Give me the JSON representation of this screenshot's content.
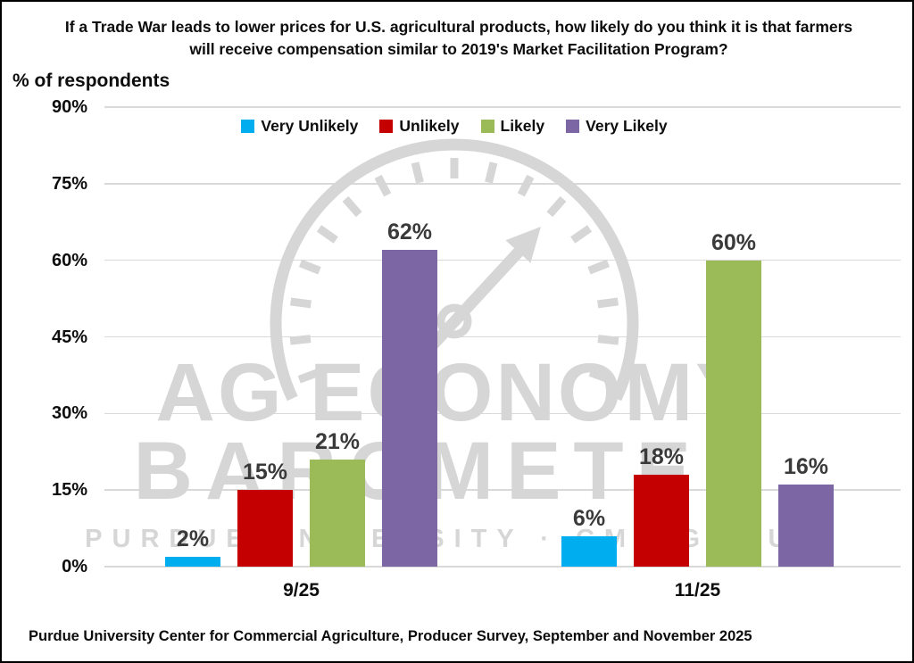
{
  "title": "If a Trade War leads to lower prices for U.S. agricultural products, how likely do you think it is that farmers will receive compensation similar to 2019's Market Facilitation Program?",
  "y_axis_label": "% of respondents",
  "footer": "Purdue University Center for Commercial Agriculture, Producer Survey, September and November 2025",
  "watermark": {
    "line1": "AG ECONOMY",
    "line2": "BAROMETER",
    "line3": "PURDUE UNIVERSITY · CME GROUP"
  },
  "chart_data": {
    "type": "bar",
    "categories": [
      "9/25",
      "11/25"
    ],
    "series": [
      {
        "name": "Very Unlikely",
        "color": "#00ADEF",
        "values": [
          2,
          6
        ]
      },
      {
        "name": "Unlikely",
        "color": "#C40000",
        "values": [
          15,
          18
        ]
      },
      {
        "name": "Likely",
        "color": "#9BBB59",
        "values": [
          21,
          60
        ]
      },
      {
        "name": "Very Likely",
        "color": "#7C66A3",
        "values": [
          62,
          16
        ]
      }
    ],
    "y_ticks": [
      "0%",
      "15%",
      "30%",
      "45%",
      "60%",
      "75%",
      "90%"
    ],
    "ylim": [
      0,
      90
    ],
    "grid": true,
    "legend_position": "top",
    "data_label_format": "{v}%"
  }
}
